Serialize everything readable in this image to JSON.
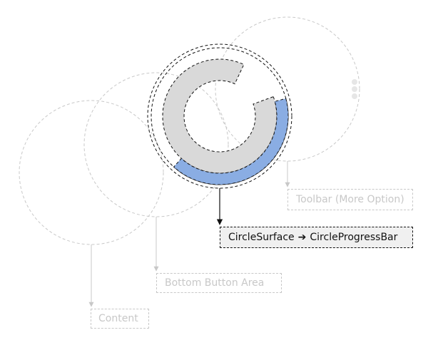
{
  "colors": {
    "dim_outline": "#c8c8c8",
    "focus_outline": "#111111",
    "track_fill": "#d9d9d9",
    "progress_fill": "#8aade3",
    "callout_bg": "#f0f0f0"
  },
  "progress": {
    "fraction": 0.33
  },
  "layers": [
    {
      "name": "Content",
      "highlighted": false
    },
    {
      "name": "Bottom Button Area",
      "highlighted": false
    },
    {
      "name": "Toolbar (More Option)",
      "highlighted": false
    },
    {
      "name": "CircleSurface",
      "highlighted": true
    }
  ],
  "labels": {
    "toolbar": "Toolbar (More Option)",
    "bottom_button_area": "Bottom Button Area",
    "content": "Content",
    "target_from": "CircleSurface",
    "target_arrow": "➔",
    "target_to": "CircleProgressBar"
  }
}
